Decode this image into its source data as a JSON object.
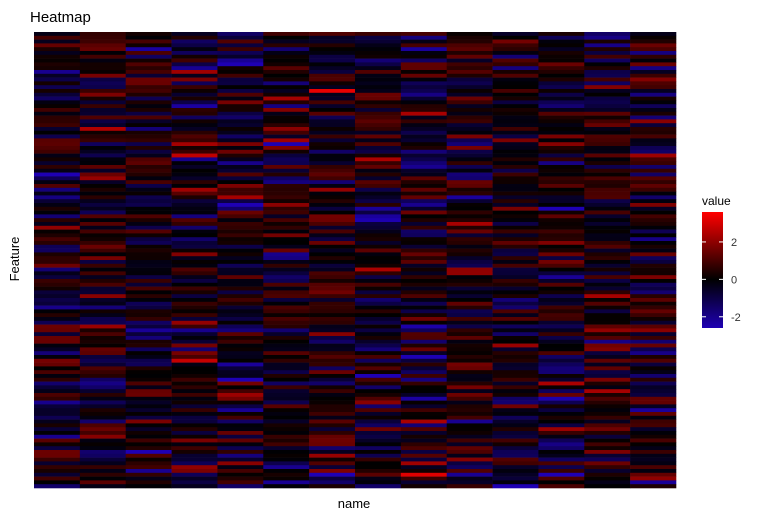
{
  "chart_data": {
    "type": "heatmap",
    "title": "Heatmap",
    "xlabel": "name",
    "ylabel": "Feature",
    "legend": {
      "title": "value",
      "placement": "right",
      "ticks": [
        {
          "value": 2,
          "label": "2"
        },
        {
          "value": 0,
          "label": "0"
        },
        {
          "value": -2,
          "label": "-2"
        }
      ],
      "range": [
        -2.6,
        3.6
      ]
    },
    "color_scale": {
      "low": "#1E00B4",
      "mid": "#000000",
      "high": "#FF0000",
      "midpoint": 0
    },
    "n_columns": 14,
    "n_rows": 120,
    "x_tick_labels_shown": false,
    "y_tick_labels_shown": false,
    "value_stats": {
      "min": -2.6,
      "max": 3.6,
      "approx_sd": 1.0
    },
    "grid": false
  }
}
